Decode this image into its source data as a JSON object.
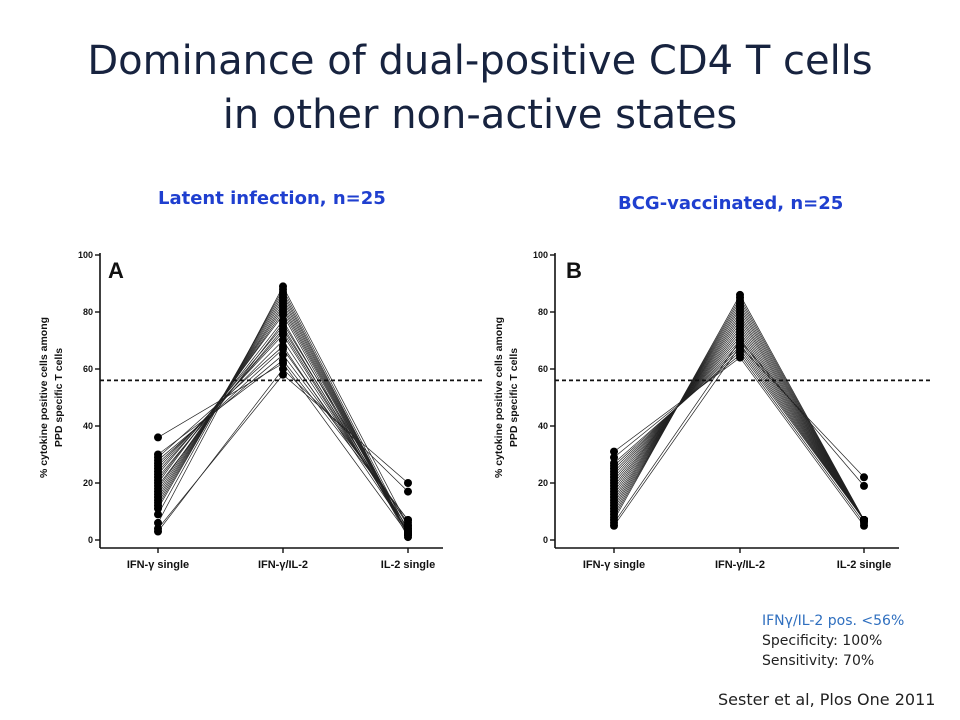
{
  "slide": {
    "title_line1": "Dominance of dual-positive CD4 T cells",
    "title_line2": "in other non-active states",
    "note_line1": "IFNγ/IL-2 pos. <56%",
    "note_line2": "Specificity: 100%",
    "note_line3": "Sensitivity: 70%",
    "citation": "Sester et al, Plos One 2011"
  },
  "chart_data": [
    {
      "type": "line",
      "panel_label": "A",
      "title": "Latent infection, n=25",
      "ylabel_line1": "% cytokine positive cells among",
      "ylabel_line2": "PPD specific T cells",
      "categories": [
        "IFN-γ single",
        "IFN-γ/IL-2",
        "IL-2 single"
      ],
      "ylim": [
        0,
        100
      ],
      "yticks": [
        "0",
        "20",
        "40",
        "60",
        "80",
        "100"
      ],
      "threshold": 56,
      "threshold_style": "dashed",
      "series": [
        {
          "values": [
            36,
            62,
            2
          ]
        },
        {
          "values": [
            30,
            63,
            7
          ]
        },
        {
          "values": [
            29,
            68,
            3
          ]
        },
        {
          "values": [
            28,
            65,
            7
          ]
        },
        {
          "values": [
            27,
            67,
            6
          ]
        },
        {
          "values": [
            26,
            70,
            4
          ]
        },
        {
          "values": [
            25,
            72,
            3
          ]
        },
        {
          "values": [
            24,
            73,
            3
          ]
        },
        {
          "values": [
            23,
            75,
            2
          ]
        },
        {
          "values": [
            22,
            74,
            4
          ]
        },
        {
          "values": [
            21,
            77,
            2
          ]
        },
        {
          "values": [
            20,
            79,
            1
          ]
        },
        {
          "values": [
            19,
            76,
            5
          ]
        },
        {
          "values": [
            18,
            80,
            2
          ]
        },
        {
          "values": [
            17,
            81,
            2
          ]
        },
        {
          "values": [
            16,
            82,
            2
          ]
        },
        {
          "values": [
            15,
            83,
            2
          ]
        },
        {
          "values": [
            14,
            84,
            2
          ]
        },
        {
          "values": [
            13,
            85,
            2
          ]
        },
        {
          "values": [
            12,
            86,
            2
          ]
        },
        {
          "values": [
            11,
            87,
            2
          ]
        },
        {
          "values": [
            9,
            88,
            3
          ]
        },
        {
          "values": [
            6,
            89,
            5
          ]
        },
        {
          "values": [
            4,
            58,
            20
          ]
        },
        {
          "values": [
            3,
            60,
            17
          ]
        }
      ]
    },
    {
      "type": "line",
      "panel_label": "B",
      "title": "BCG-vaccinated, n=25",
      "ylabel_line1": "% cytokine positive cells among",
      "ylabel_line2": "PPD specific T cells",
      "categories": [
        "IFN-γ single",
        "IFN-γ/IL-2",
        "IL-2 single"
      ],
      "ylim": [
        0,
        100
      ],
      "yticks": [
        "0",
        "20",
        "40",
        "60",
        "80",
        "100"
      ],
      "threshold": 56,
      "threshold_style": "dashed",
      "series": [
        {
          "values": [
            31,
            64,
            5
          ]
        },
        {
          "values": [
            29,
            65,
            6
          ]
        },
        {
          "values": [
            27,
            66,
            7
          ]
        },
        {
          "values": [
            26,
            67,
            7
          ]
        },
        {
          "values": [
            25,
            68,
            7
          ]
        },
        {
          "values": [
            24,
            69,
            7
          ]
        },
        {
          "values": [
            23,
            70,
            7
          ]
        },
        {
          "values": [
            22,
            71,
            7
          ]
        },
        {
          "values": [
            21,
            72,
            7
          ]
        },
        {
          "values": [
            20,
            73,
            7
          ]
        },
        {
          "values": [
            19,
            74,
            7
          ]
        },
        {
          "values": [
            18,
            75,
            7
          ]
        },
        {
          "values": [
            17,
            76,
            7
          ]
        },
        {
          "values": [
            16,
            77,
            7
          ]
        },
        {
          "values": [
            15,
            78,
            7
          ]
        },
        {
          "values": [
            14,
            79,
            7
          ]
        },
        {
          "values": [
            13,
            80,
            7
          ]
        },
        {
          "values": [
            12,
            81,
            7
          ]
        },
        {
          "values": [
            11,
            82,
            7
          ]
        },
        {
          "values": [
            10,
            83,
            7
          ]
        },
        {
          "values": [
            9,
            84,
            7
          ]
        },
        {
          "values": [
            8,
            85,
            7
          ]
        },
        {
          "values": [
            7,
            86,
            7
          ]
        },
        {
          "values": [
            5,
            68,
            22
          ]
        },
        {
          "values": [
            6,
            70,
            19
          ]
        }
      ]
    }
  ]
}
